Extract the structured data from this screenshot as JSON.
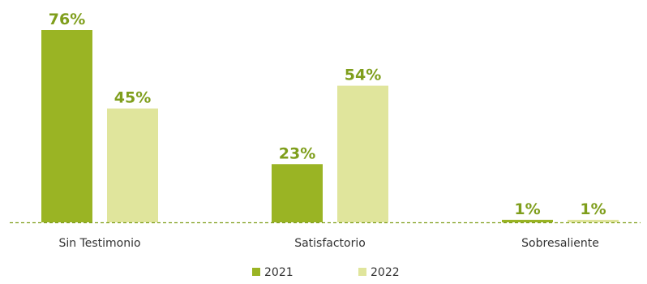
{
  "chart_data": {
    "type": "bar",
    "categories": [
      "Sin Testimonio",
      "Satisfactorio",
      "Sobresaliente"
    ],
    "series": [
      {
        "name": "2021",
        "values": [
          76,
          23,
          1
        ],
        "labels": [
          "76%",
          "23%",
          "1%"
        ],
        "color": "#9ab424"
      },
      {
        "name": "2022",
        "values": [
          45,
          54,
          1
        ],
        "labels": [
          "45%",
          "54%",
          "1%"
        ],
        "color": "#e0e59c"
      }
    ],
    "ylim": [
      0,
      76
    ],
    "grid": false,
    "baseline_style": "dashed",
    "baseline_color": "#7f9e1c",
    "label_color": "#7f9e1c",
    "legend_position": "bottom"
  }
}
